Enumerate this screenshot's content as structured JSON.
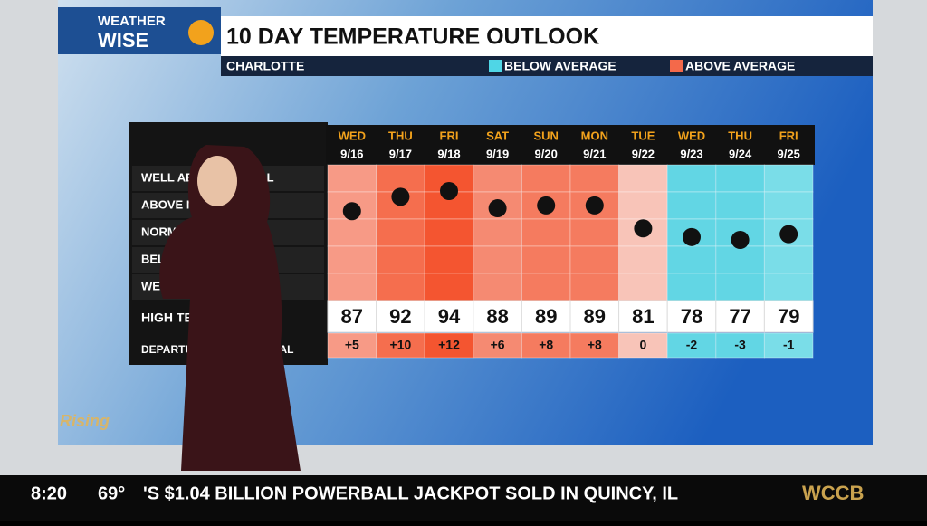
{
  "header": {
    "brand_top": "WEATHER",
    "brand_bottom": "WISE",
    "title": "10 DAY TEMPERATURE OUTLOOK",
    "location": "CHARLOTTE",
    "legend_below": "BELOW AVERAGE",
    "legend_above": "ABOVE AVERAGE",
    "legend_below_color": "#4fd6e6",
    "legend_above_color": "#f4694a"
  },
  "table": {
    "row_labels": [
      "WELL ABOVE NORMAL",
      "ABOVE NORMAL",
      "NORMAL",
      "BELOW NORMAL",
      "WELL BELOW NORMAL"
    ],
    "high_label": "HIGH TEMP",
    "departure_label": "DEPARTURE FROM NORMAL",
    "days": [
      {
        "day": "WED",
        "date": "9/16",
        "high": 87,
        "departure": "+5",
        "color": "#f79a86"
      },
      {
        "day": "THU",
        "date": "9/17",
        "high": 92,
        "departure": "+10",
        "color": "#f56e4e"
      },
      {
        "day": "FRI",
        "date": "9/18",
        "high": 94,
        "departure": "+12",
        "color": "#f45530"
      },
      {
        "day": "SAT",
        "date": "9/19",
        "high": 88,
        "departure": "+6",
        "color": "#f58a72"
      },
      {
        "day": "SUN",
        "date": "9/20",
        "high": 89,
        "departure": "+8",
        "color": "#f57b5f"
      },
      {
        "day": "MON",
        "date": "9/21",
        "high": 89,
        "departure": "+8",
        "color": "#f57b5f"
      },
      {
        "day": "TUE",
        "date": "9/22",
        "high": 81,
        "departure": "0",
        "color": "#f8c4b8"
      },
      {
        "day": "WED",
        "date": "9/23",
        "high": 78,
        "departure": "-2",
        "color": "#62d6e4"
      },
      {
        "day": "THU",
        "date": "9/24",
        "high": 77,
        "departure": "-3",
        "color": "#62d6e4"
      },
      {
        "day": "FRI",
        "date": "9/25",
        "high": 79,
        "departure": "-1",
        "color": "#7adde8"
      }
    ]
  },
  "show": {
    "logo": "Rising"
  },
  "ticker": {
    "time": "8:20",
    "temp": "69°",
    "headline": "'S $1.04 BILLION POWERBALL JACKPOT SOLD IN QUINCY, IL",
    "station": "WCCB"
  }
}
